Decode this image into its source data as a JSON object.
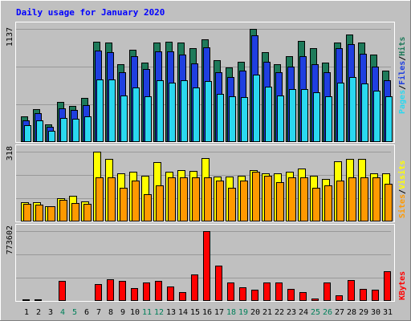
{
  "chart_data": [
    {
      "type": "bar",
      "title": "Daily usage for January 2020",
      "categories": [
        "1",
        "2",
        "3",
        "4",
        "5",
        "6",
        "7",
        "8",
        "9",
        "10",
        "11",
        "12",
        "13",
        "14",
        "15",
        "16",
        "17",
        "18",
        "19",
        "20",
        "21",
        "22",
        "23",
        "24",
        "25",
        "26",
        "27",
        "28",
        "29",
        "30",
        "31"
      ],
      "weekend_categories": [
        "4",
        "5",
        "11",
        "12",
        "18",
        "19",
        "25",
        "26"
      ],
      "y_tick_label": "1137",
      "ylim": [
        0,
        1137
      ],
      "legend_parts": [
        "Pages",
        "Files",
        "Hits"
      ],
      "series": [
        {
          "name": "Hits",
          "color": "#1e7a5a",
          "values": [
            260,
            330,
            180,
            400,
            360,
            440,
            1010,
            1000,
            780,
            930,
            800,
            1000,
            1010,
            1000,
            940,
            1030,
            820,
            750,
            810,
            1137,
            900,
            780,
            860,
            1020,
            940,
            800,
            1000,
            1080,
            1000,
            880,
            720
          ]
        },
        {
          "name": "Files",
          "color": "#1f3fe0",
          "values": [
            220,
            290,
            150,
            340,
            320,
            370,
            920,
            900,
            700,
            860,
            730,
            910,
            910,
            880,
            790,
            950,
            700,
            650,
            720,
            1070,
            810,
            700,
            760,
            860,
            780,
            700,
            940,
            980,
            890,
            760,
            620
          ]
        },
        {
          "name": "Pages",
          "color": "#2ad8f0",
          "values": [
            170,
            220,
            110,
            240,
            230,
            260,
            630,
            630,
            470,
            550,
            460,
            620,
            600,
            620,
            550,
            610,
            480,
            460,
            450,
            680,
            560,
            470,
            530,
            530,
            500,
            460,
            600,
            650,
            590,
            520,
            460
          ]
        }
      ]
    },
    {
      "type": "bar",
      "y_tick_label": "318",
      "ylim": [
        0,
        318
      ],
      "legend_parts": [
        "Sites",
        "Visits"
      ],
      "series": [
        {
          "name": "Visits",
          "color": "#ffff00",
          "values": [
            88,
            86,
            70,
            105,
            118,
            92,
            318,
            285,
            218,
            225,
            210,
            270,
            225,
            235,
            230,
            290,
            205,
            205,
            210,
            235,
            220,
            220,
            225,
            240,
            210,
            195,
            275,
            285,
            285,
            220,
            220
          ]
        },
        {
          "name": "Sites",
          "color": "#ff9900",
          "values": [
            80,
            76,
            70,
            100,
            85,
            80,
            200,
            200,
            155,
            185,
            125,
            165,
            200,
            200,
            200,
            200,
            185,
            155,
            185,
            225,
            210,
            180,
            200,
            200,
            155,
            165,
            185,
            200,
            200,
            200,
            170
          ]
        }
      ]
    },
    {
      "type": "bar",
      "y_tick_label": "773602",
      "ylim": [
        0,
        773602
      ],
      "legend_parts": [
        "KBytes"
      ],
      "series": [
        {
          "name": "KBytes",
          "color": "#ff0000",
          "values": [
            15000,
            22000,
            10000,
            225000,
            8000,
            10000,
            190000,
            240000,
            225000,
            140000,
            205000,
            225000,
            160000,
            95000,
            295000,
            773602,
            390000,
            205000,
            150000,
            125000,
            205000,
            205000,
            130000,
            95000,
            30000,
            205000,
            60000,
            230000,
            130000,
            125000,
            330000
          ]
        }
      ]
    }
  ],
  "colors": {
    "background": "#c0c0c0",
    "panel": "#c0c0c0",
    "title": "#0000ff",
    "weekday_label": "#000000",
    "weekend_label": "#00805a",
    "gridline": "#999999"
  }
}
